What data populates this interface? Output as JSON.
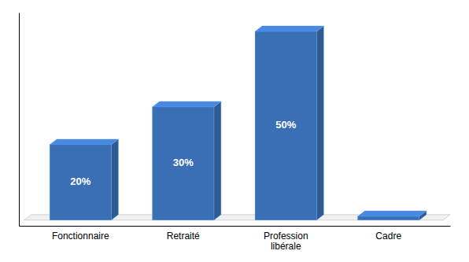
{
  "chart_data": {
    "type": "bar",
    "categories": [
      "Fonctionnaire",
      "Retraité",
      "Profession\nlibérale",
      "Cadre"
    ],
    "values": [
      20,
      30,
      50,
      1
    ],
    "value_labels": [
      "20%",
      "30%",
      "50%",
      null
    ],
    "data_labels": true,
    "color": "#3B6FB5",
    "ylim": [
      -1.5,
      55
    ],
    "tick_labels": "x"
  }
}
